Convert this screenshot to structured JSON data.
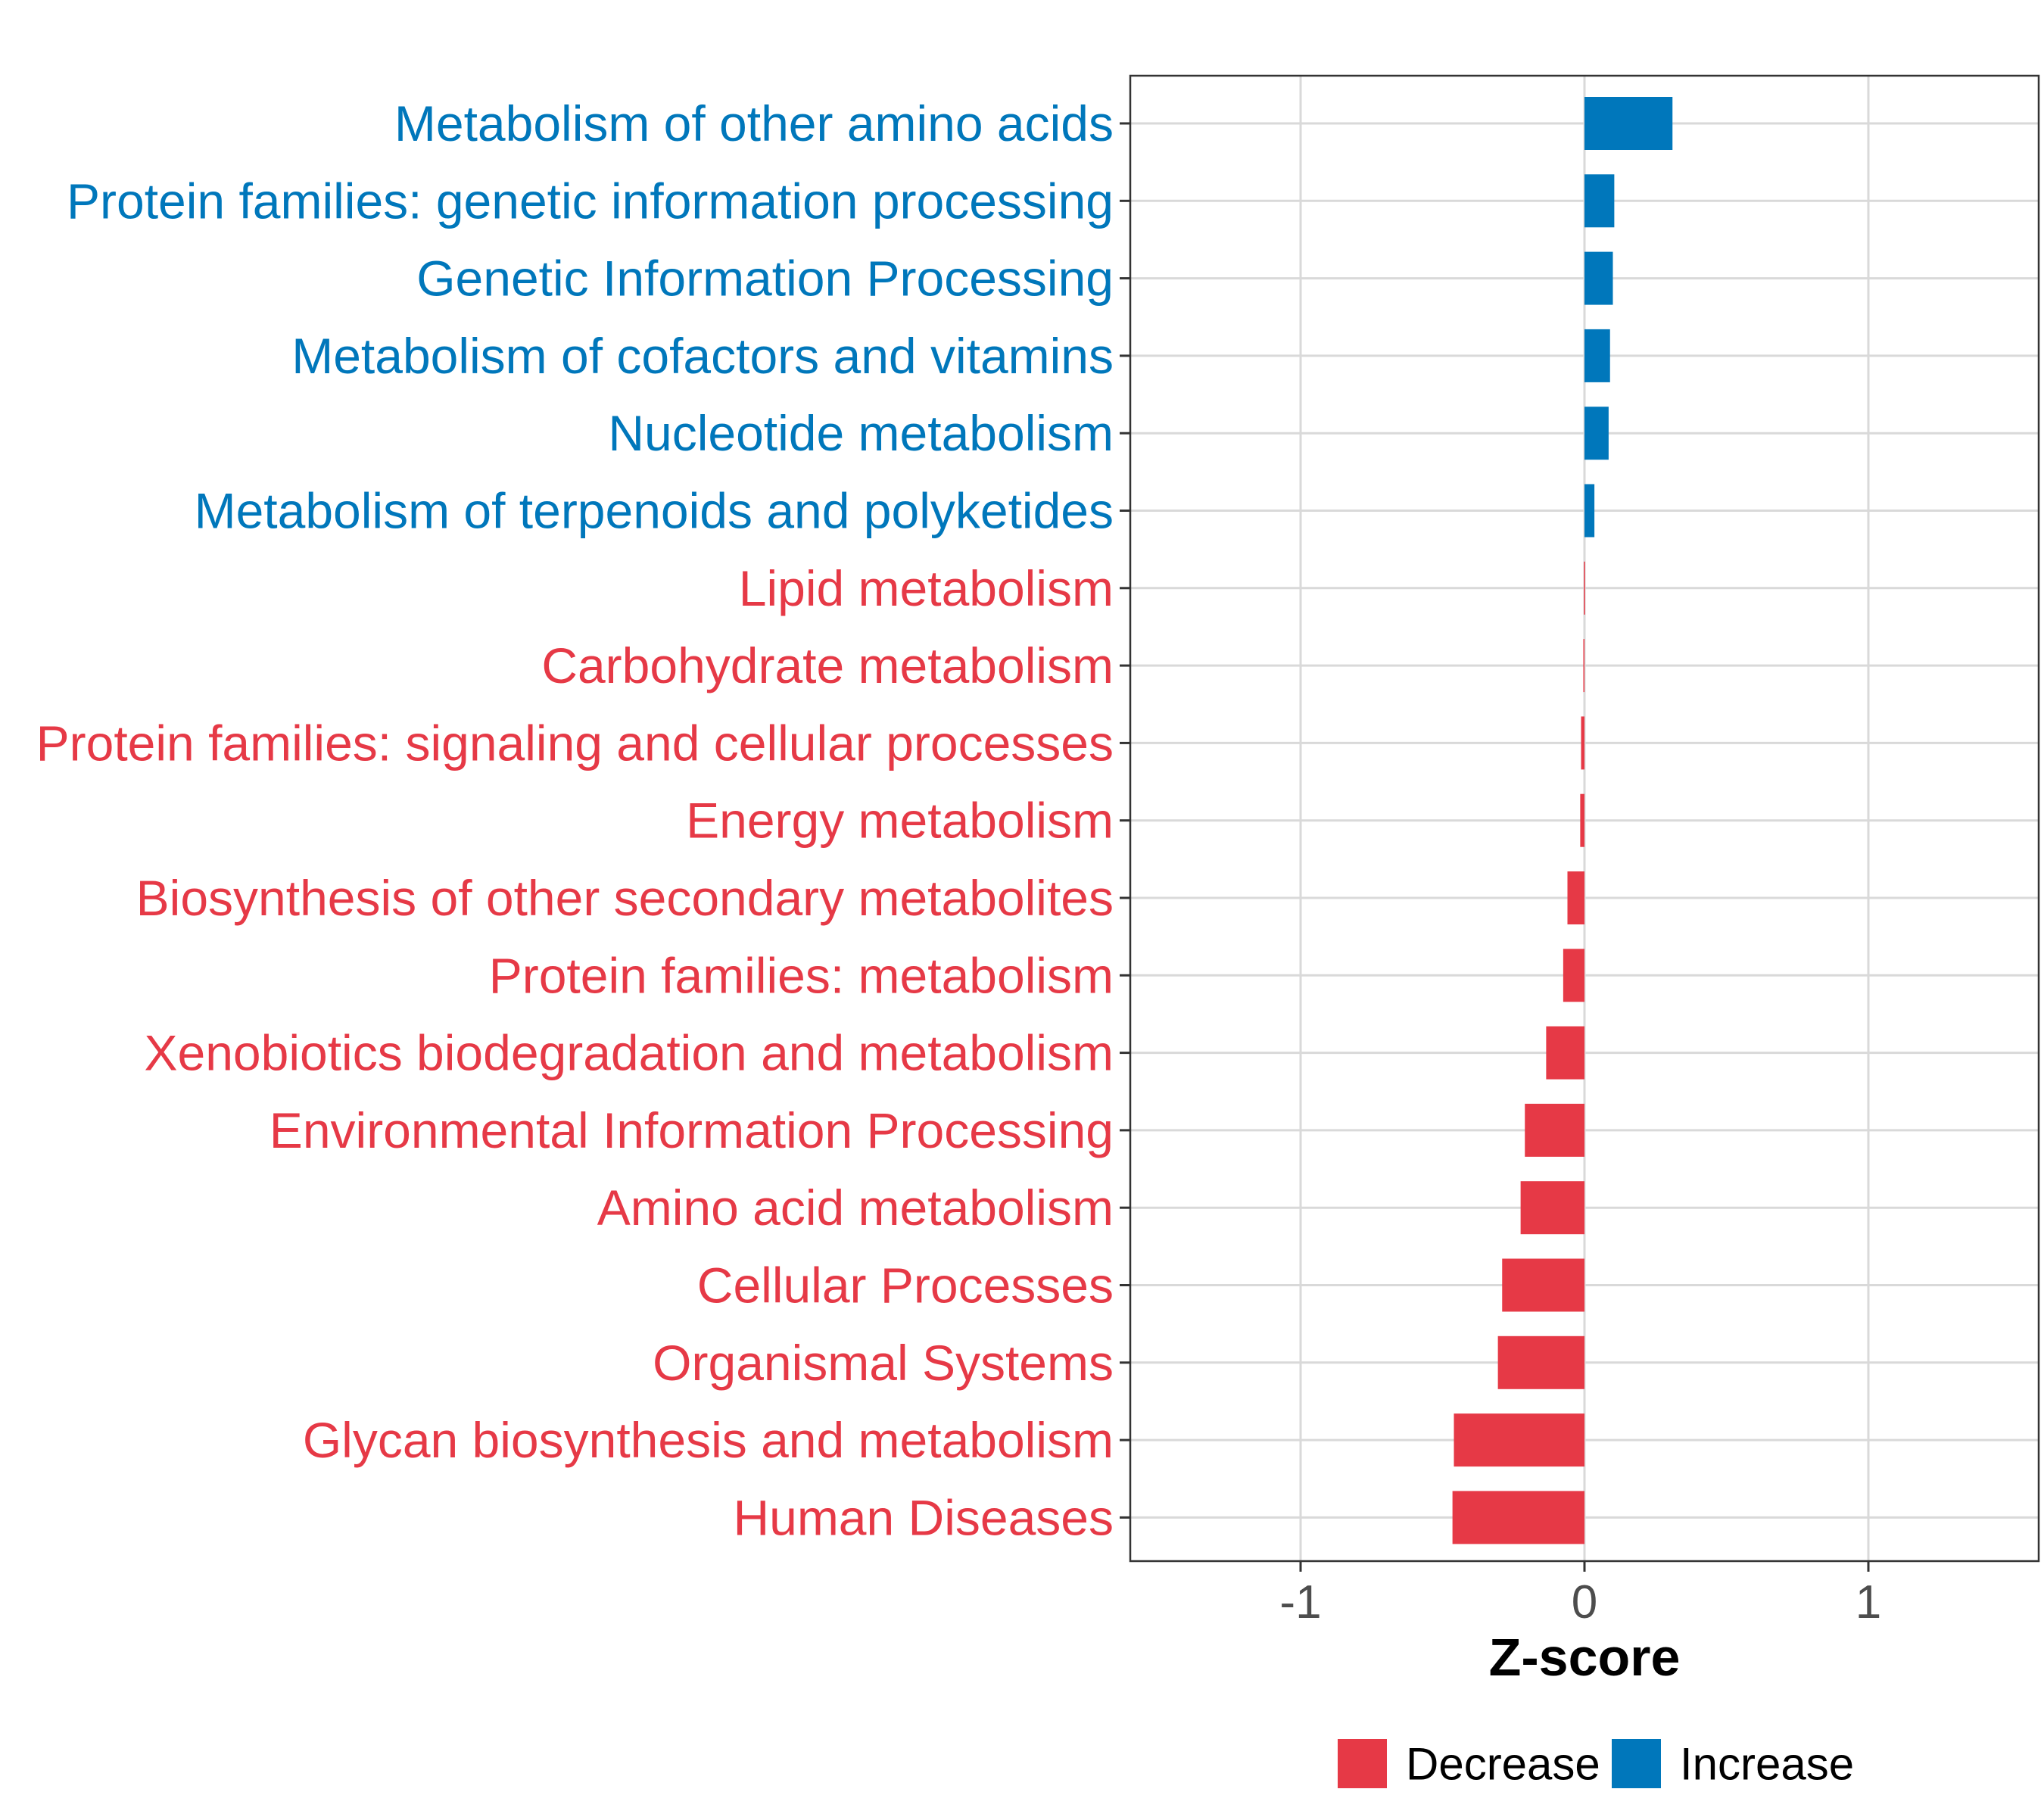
{
  "chart_data": {
    "type": "bar",
    "orientation": "horizontal",
    "title": "",
    "xlabel": "Z-score",
    "ylabel": "",
    "xlim": [
      -1.6,
      1.6
    ],
    "xticks": [
      -1,
      0,
      1
    ],
    "xtick_labels": [
      "-1",
      "0",
      "1"
    ],
    "grid": true,
    "colors": {
      "Decrease": "#E63946",
      "Increase": "#0077BB"
    },
    "categories": [
      "Metabolism of other amino acids",
      "Protein families: genetic information processing",
      "Genetic Information Processing",
      "Metabolism of cofactors and vitamins",
      "Nucleotide metabolism",
      "Metabolism of terpenoids and polyketides",
      "Lipid metabolism",
      "Carbohydrate metabolism",
      "Protein families: signaling and cellular processes",
      "Energy metabolism",
      "Biosynthesis of other secondary metabolites",
      "Protein families: metabolism",
      "Xenobiotics biodegradation and metabolism",
      "Environmental Information Processing",
      "Amino acid metabolism",
      "Cellular Processes",
      "Organismal Systems",
      "Glycan biosynthesis and metabolism",
      "Human Diseases"
    ],
    "values": [
      0.31,
      0.105,
      0.1,
      0.09,
      0.085,
      0.035,
      -0.002,
      -0.004,
      -0.012,
      -0.015,
      -0.06,
      -0.075,
      -0.135,
      -0.21,
      -0.225,
      -0.29,
      -0.305,
      -0.46,
      -0.465
    ],
    "groups": [
      "Increase",
      "Increase",
      "Increase",
      "Increase",
      "Increase",
      "Increase",
      "Decrease",
      "Decrease",
      "Decrease",
      "Decrease",
      "Decrease",
      "Decrease",
      "Decrease",
      "Decrease",
      "Decrease",
      "Decrease",
      "Decrease",
      "Decrease",
      "Decrease"
    ],
    "legend": {
      "position": "bottom",
      "entries": [
        {
          "label": "Decrease",
          "color": "#E63946"
        },
        {
          "label": "Increase",
          "color": "#0077BB"
        }
      ]
    }
  }
}
